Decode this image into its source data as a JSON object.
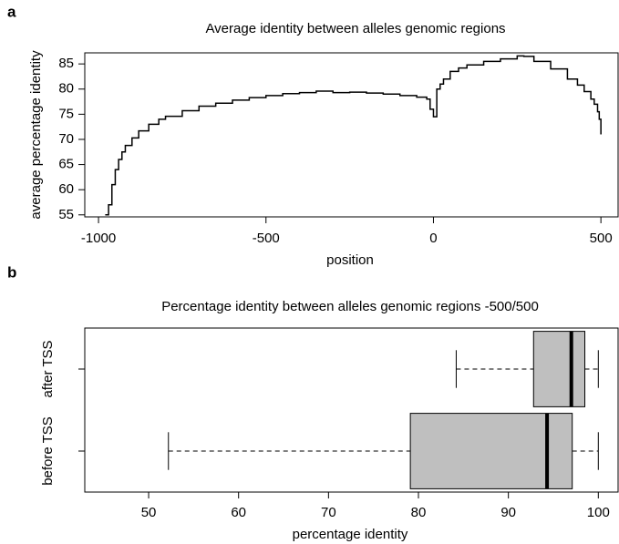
{
  "chart_data": [
    {
      "type": "line",
      "panel_label": "a",
      "title": "Average identity between alleles genomic regions",
      "xlabel": "position",
      "ylabel": "average percentage identity",
      "drawstyle": "steps",
      "color": "#000000",
      "x": [
        -980,
        -970,
        -960,
        -950,
        -940,
        -930,
        -920,
        -900,
        -880,
        -850,
        -820,
        -800,
        -750,
        -700,
        -650,
        -600,
        -550,
        -500,
        -450,
        -400,
        -350,
        -300,
        -250,
        -200,
        -150,
        -100,
        -50,
        -20,
        -10,
        0,
        10,
        20,
        30,
        50,
        75,
        100,
        150,
        200,
        250,
        270,
        300,
        350,
        400,
        430,
        450,
        470,
        480,
        490,
        495,
        500
      ],
      "values": [
        55,
        57,
        61,
        64,
        66,
        67.5,
        68.8,
        70.3,
        71.7,
        73,
        74,
        74.6,
        75.7,
        76.6,
        77.2,
        77.8,
        78.3,
        78.7,
        79.1,
        79.3,
        79.6,
        79.3,
        79.4,
        79.2,
        79,
        78.7,
        78.4,
        78,
        76,
        74.5,
        80,
        81,
        82,
        83.5,
        84.2,
        84.8,
        85.5,
        86,
        86.6,
        86.5,
        85.5,
        84,
        82,
        80.8,
        79.5,
        78,
        77,
        75.5,
        74,
        71
      ],
      "xlim": [
        -1041,
        554
      ],
      "ylim": [
        54.6,
        87.2
      ],
      "xticks": [
        -1000,
        -500,
        0,
        500
      ],
      "yticks": [
        55,
        60,
        65,
        70,
        75,
        80,
        85
      ]
    },
    {
      "type": "boxplot",
      "panel_label": "b",
      "title": "Percentage identity between alleles genomic regions -500/500",
      "xlabel": "percentage identity",
      "color": "#bfbfbf",
      "categories": [
        "after TSS",
        "before TSS"
      ],
      "stats": [
        {
          "whislo": 84.2,
          "q1": 92.8,
          "med": 97,
          "q3": 98.5,
          "whishi": 100
        },
        {
          "whislo": 52.2,
          "q1": 79.1,
          "med": 94.3,
          "q3": 97.1,
          "whishi": 100
        }
      ],
      "xlim": [
        42.9,
        102.3
      ],
      "xticks": [
        50,
        60,
        70,
        80,
        90,
        100
      ]
    }
  ]
}
